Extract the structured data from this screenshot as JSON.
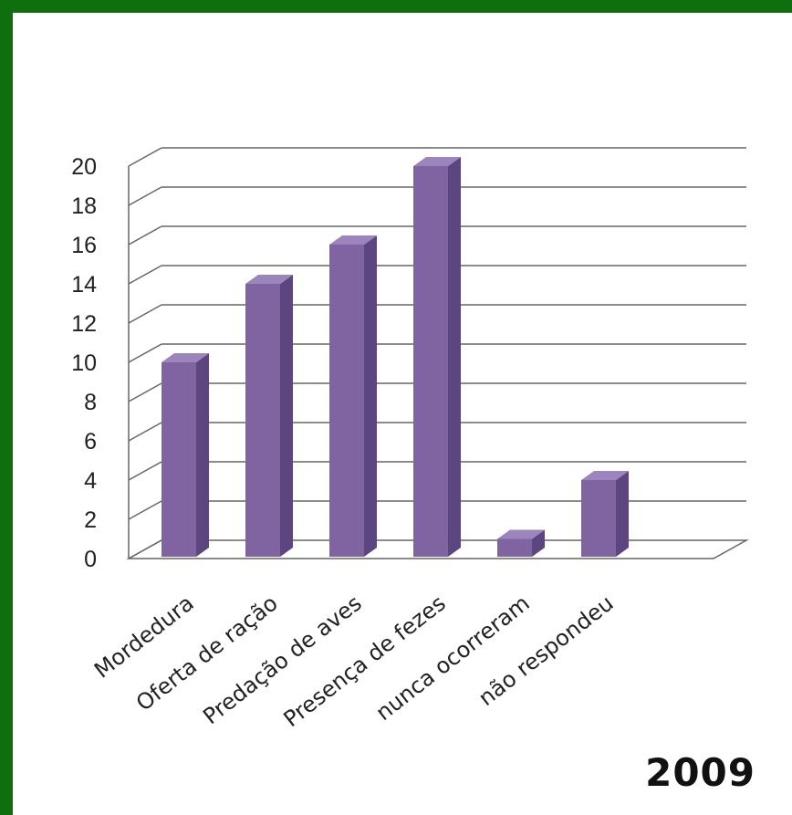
{
  "chart_data": {
    "type": "bar",
    "style": "3d-column",
    "categories": [
      "Mordedura",
      "Oferta de ração",
      "Predação de aves",
      "Presença de fezes",
      "nunca ocorreram",
      "não respondeu"
    ],
    "values": [
      10,
      14,
      16,
      20,
      1,
      4
    ],
    "title": "",
    "xlabel": "",
    "ylabel": "",
    "ylim": [
      0,
      20
    ],
    "yticks": [
      0,
      2,
      4,
      6,
      8,
      10,
      12,
      14,
      16,
      18,
      20
    ],
    "grid": true,
    "legend": "none"
  },
  "annotation": "2009",
  "colors": {
    "bar_front": "#8064a2",
    "bar_side": "#5b4680",
    "bar_top": "#9b85bc",
    "grid": "#666666",
    "frame": "#0f6f0f"
  }
}
